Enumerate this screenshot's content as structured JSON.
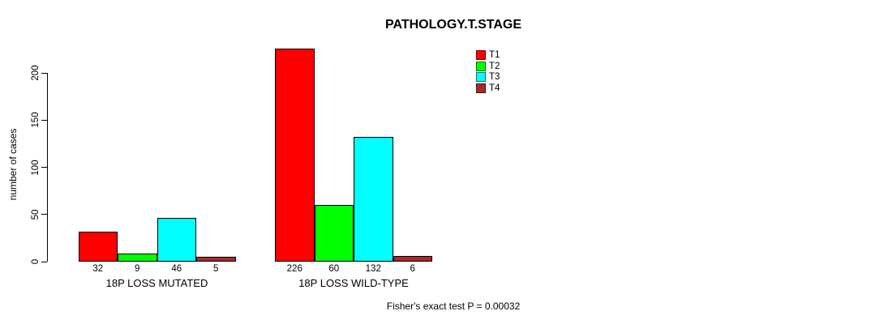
{
  "chart_data": {
    "type": "bar",
    "grouped": true,
    "title": "PATHOLOGY.T.STAGE",
    "ylabel": "number of cases",
    "annotation": "Fisher's exact test P = 0.00032",
    "categories": [
      "18P LOSS MUTATED",
      "18P LOSS WILD-TYPE"
    ],
    "series": [
      {
        "name": "T1",
        "color": "#FF0000",
        "values": [
          32,
          226
        ]
      },
      {
        "name": "T2",
        "color": "#00FF00",
        "values": [
          9,
          60
        ]
      },
      {
        "name": "T3",
        "color": "#00FFFF",
        "values": [
          46,
          132
        ]
      },
      {
        "name": "T4",
        "color": "#A52A2A",
        "values": [
          5,
          6
        ]
      }
    ],
    "bar_value_labels": [
      [
        32,
        9,
        46,
        5
      ],
      [
        226,
        60,
        132,
        6
      ]
    ],
    "yticks": [
      0,
      50,
      100,
      150,
      200
    ],
    "ylim": [
      0,
      235
    ],
    "grid": false,
    "legend_position": "top-right",
    "legend_entries": [
      "T1",
      "T2",
      "T3",
      "T4"
    ]
  }
}
